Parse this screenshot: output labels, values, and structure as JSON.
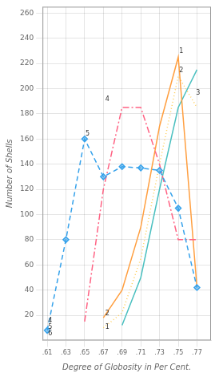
{
  "chart_data": {
    "type": "line",
    "xlabel": "Degree of Globosity in Per Cent.",
    "ylabel": "Number of Shells",
    "xlim": [
      0.605,
      0.785
    ],
    "ylim": [
      0,
      265
    ],
    "xticks": [
      {
        "value": 0.61,
        "label": ".61"
      },
      {
        "value": 0.63,
        "label": ".63"
      },
      {
        "value": 0.65,
        "label": ".65"
      },
      {
        "value": 0.67,
        "label": ".67"
      },
      {
        "value": 0.69,
        "label": ".69"
      },
      {
        "value": 0.71,
        "label": ".71"
      },
      {
        "value": 0.73,
        "label": ".73"
      },
      {
        "value": 0.75,
        "label": ".75"
      },
      {
        "value": 0.77,
        "label": ".77"
      }
    ],
    "yticks": [
      20,
      40,
      60,
      80,
      100,
      120,
      140,
      160,
      180,
      200,
      220,
      240,
      260
    ],
    "grid": true,
    "series": [
      {
        "x": [
          0.61,
          0.63,
          0.65,
          0.67,
          0.69,
          0.71,
          0.73,
          0.75,
          0.77
        ],
        "values": [
          8,
          80,
          160,
          130,
          138,
          137,
          135,
          105,
          42
        ],
        "line_style": "dashed",
        "marker": "diamond"
      },
      {
        "x": [
          0.65,
          0.67,
          0.69,
          0.71,
          0.73,
          0.75,
          0.77
        ],
        "values": [
          15,
          120,
          185,
          185,
          140,
          80,
          80
        ],
        "line_style": "dashdot",
        "marker": "none"
      },
      {
        "x": [
          0.67,
          0.69,
          0.71,
          0.73,
          0.75,
          0.77
        ],
        "values": [
          18,
          40,
          90,
          170,
          225,
          42
        ],
        "line_style": "solid",
        "marker": "none"
      },
      {
        "x": [
          0.67,
          0.69,
          0.71,
          0.73,
          0.75,
          0.77
        ],
        "values": [
          10,
          22,
          65,
          140,
          210,
          185
        ],
        "line_style": "dotted",
        "marker": "none"
      },
      {
        "x": [
          0.69,
          0.71,
          0.73,
          0.75,
          0.77
        ],
        "values": [
          12,
          50,
          120,
          185,
          215
        ],
        "line_style": "solid",
        "marker": "none"
      }
    ],
    "annotations": [
      {
        "text": "5",
        "x": 0.651,
        "y": 163
      },
      {
        "text": "4",
        "x": 0.672,
        "y": 190
      },
      {
        "text": "1",
        "x": 0.751,
        "y": 228
      },
      {
        "text": "2",
        "x": 0.751,
        "y": 213
      },
      {
        "text": "3",
        "x": 0.769,
        "y": 195
      },
      {
        "text": "6",
        "x": 0.611,
        "y": 4
      },
      {
        "text": "5",
        "x": 0.611,
        "y": 9
      },
      {
        "text": "4",
        "x": 0.611,
        "y": 14
      },
      {
        "text": "1",
        "x": 0.672,
        "y": 9
      },
      {
        "text": "2",
        "x": 0.672,
        "y": 20
      }
    ]
  }
}
